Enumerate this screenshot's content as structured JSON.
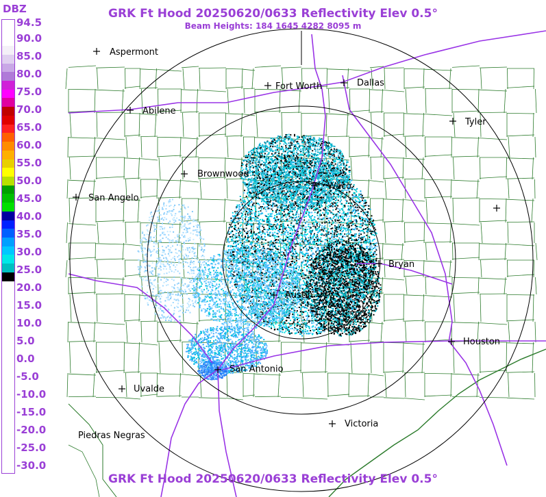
{
  "title_top": "GRK Ft Hood 20250620/0633 Reflectivity Elev 0.5°",
  "subtitle": "Beam Heights: 184 1645 4282 8095 m",
  "title_bottom": "GRK Ft Hood 20250620/0633 Reflectivity Elev 0.5°",
  "legend": {
    "unit": "DBZ",
    "ticks": [
      "94.5",
      "90.0",
      "85.0",
      "80.0",
      "75.0",
      "70.0",
      "65.0",
      "60.0",
      "55.0",
      "50.0",
      "45.0",
      "40.0",
      "35.0",
      "30.0",
      "25.0",
      "20.0",
      "15.0",
      "10.0",
      "5.0",
      "0.0",
      "-5.0",
      "-10.0",
      "-15.0",
      "-20.0",
      "-25.0",
      "-30.0"
    ],
    "colors": [
      "#ffffff",
      "#ffffff",
      "#ffffff",
      "#f4f0f8",
      "#e0d0f0",
      "#c9a8e6",
      "#b07ad8",
      "#d020d8",
      "#ff00ff",
      "#e000a0",
      "#c00000",
      "#e00000",
      "#ff2020",
      "#ff6000",
      "#ff8c00",
      "#ffb000",
      "#e8d000",
      "#ffff00",
      "#b8e000",
      "#00a000",
      "#00c000",
      "#00e000",
      "#0000a0",
      "#0020ff",
      "#0060ff",
      "#00a0ff",
      "#00c8ff",
      "#00e8e8",
      "#00c0c0",
      "#000000",
      "#ffffff",
      "#ffffff",
      "#ffffff",
      "#ffffff",
      "#ffffff",
      "#ffffff",
      "#ffffff",
      "#ffffff",
      "#ffffff",
      "#ffffff",
      "#ffffff",
      "#ffffff",
      "#ffffff",
      "#ffffff",
      "#ffffff",
      "#ffffff",
      "#ffffff",
      "#ffffff",
      "#ffffff",
      "#ffffff",
      "#ffffff",
      "#ffffff"
    ]
  },
  "cities": [
    {
      "name": "Aspermont"
    },
    {
      "name": "Fort Worth"
    },
    {
      "name": "Dallas"
    },
    {
      "name": "Abilene"
    },
    {
      "name": "Tyler"
    },
    {
      "name": "Brownwood"
    },
    {
      "name": "Waco"
    },
    {
      "name": "San Angelo"
    },
    {
      "name": "Bryan"
    },
    {
      "name": "Austin"
    },
    {
      "name": "Houston"
    },
    {
      "name": "San Antonio"
    },
    {
      "name": "Uvalde"
    },
    {
      "name": "Victoria"
    },
    {
      "name": "Piedras Negras"
    }
  ],
  "colors": {
    "title": "#9a3fd6",
    "roads": "#9933e6",
    "counties": "#2a7a2a",
    "rings": "#000000"
  }
}
